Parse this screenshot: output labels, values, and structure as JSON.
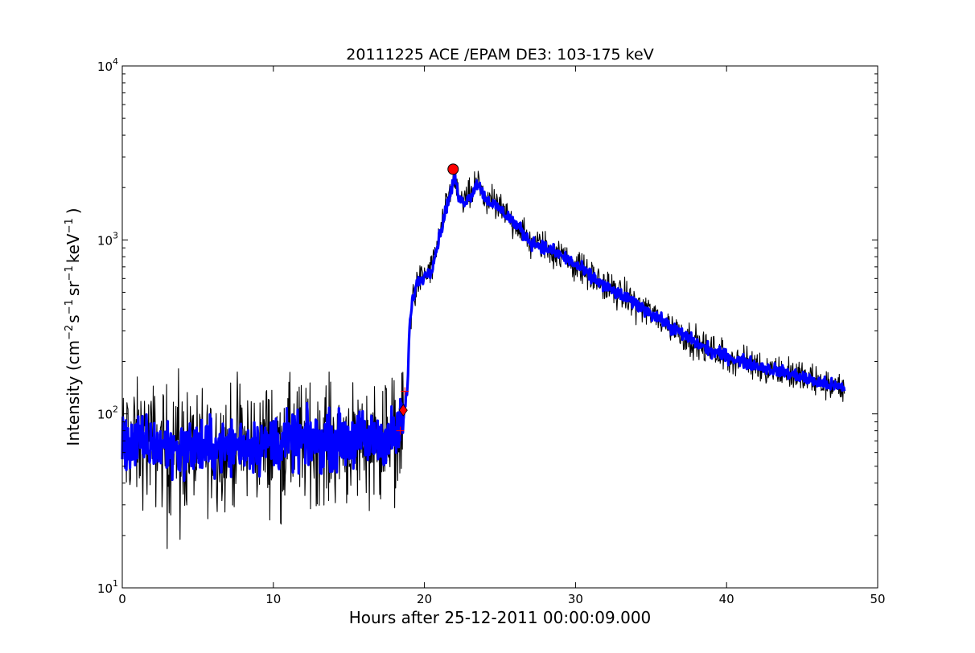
{
  "chart_data": {
    "type": "line",
    "title": "20111225 ACE /EPAM DE3: 103-175 keV",
    "xlabel": "Hours after 25-12-2011 00:00:09.000",
    "ylabel": {
      "prefix": "Intensity (cm",
      "sup1": "−2",
      "mid1": "s",
      "sup2": "−1",
      "mid2": "sr",
      "sup3": "−1",
      "mid3": "keV",
      "sup4": "−1",
      "suffix": ")"
    },
    "x_range": [
      0,
      50
    ],
    "y_range": [
      10,
      10000
    ],
    "y_scale": "log",
    "grid": false,
    "x_ticks": [
      0,
      10,
      20,
      30,
      40,
      50
    ],
    "y_ticks": [
      {
        "value": 10,
        "base": "10",
        "exp": "1"
      },
      {
        "value": 100,
        "base": "10",
        "exp": "2"
      },
      {
        "value": 1000,
        "base": "10",
        "exp": "3"
      },
      {
        "value": 10000,
        "base": "10",
        "exp": "4"
      }
    ],
    "series": [
      {
        "style": "raw",
        "color": "#000000",
        "x": [
          0,
          1,
          2,
          3,
          4,
          5,
          6,
          7,
          8,
          9,
          10,
          11,
          12,
          13,
          14,
          15,
          16,
          17,
          18,
          18.6,
          18.9,
          19.0,
          19.2,
          19.5,
          20,
          20.5,
          21,
          21.5,
          21.9,
          22.0,
          22.2,
          22.5,
          23,
          23.5,
          24,
          25,
          26,
          27,
          28,
          29,
          30,
          31,
          32,
          33,
          34,
          35,
          36,
          37,
          38,
          39,
          40,
          41,
          42,
          43,
          44,
          45,
          46,
          47,
          47.8
        ],
        "y": [
          67,
          68,
          66,
          65,
          63,
          64,
          64,
          65,
          66,
          67,
          68,
          69,
          69,
          70,
          70,
          71,
          71,
          72,
          74,
          92,
          150,
          300,
          450,
          560,
          620,
          690,
          1050,
          1600,
          2100,
          2500,
          1800,
          1650,
          1750,
          2150,
          1750,
          1500,
          1250,
          980,
          900,
          820,
          720,
          620,
          540,
          480,
          430,
          380,
          330,
          290,
          255,
          230,
          215,
          200,
          190,
          180,
          172,
          162,
          152,
          145,
          140
        ]
      },
      {
        "style": "smoothed",
        "color": "#0000ff",
        "x": [
          0,
          1,
          2,
          3,
          4,
          5,
          6,
          7,
          8,
          9,
          10,
          11,
          12,
          13,
          14,
          15,
          16,
          17,
          18,
          18.6,
          18.9,
          19.0,
          19.2,
          19.5,
          20,
          20.5,
          21,
          21.5,
          21.9,
          22.0,
          22.2,
          22.5,
          23,
          23.5,
          24,
          25,
          26,
          27,
          28,
          29,
          30,
          31,
          32,
          33,
          34,
          35,
          36,
          37,
          38,
          39,
          40,
          41,
          42,
          43,
          44,
          45,
          46,
          47,
          47.8
        ],
        "y": [
          67,
          68,
          66,
          65,
          63,
          64,
          64,
          65,
          66,
          67,
          68,
          69,
          69,
          70,
          70,
          71,
          71,
          72,
          74,
          92,
          150,
          300,
          450,
          560,
          620,
          690,
          1050,
          1600,
          2100,
          2500,
          1800,
          1650,
          1750,
          2150,
          1750,
          1500,
          1250,
          980,
          900,
          820,
          720,
          620,
          540,
          480,
          430,
          380,
          330,
          290,
          255,
          230,
          215,
          200,
          190,
          180,
          172,
          162,
          152,
          145,
          140
        ]
      }
    ],
    "markers": [
      {
        "kind": "peak-circle",
        "x": 21.9,
        "y": 2550,
        "color": "#ff0000"
      },
      {
        "kind": "onset-diamond",
        "x": 18.6,
        "y": 105,
        "color": "#ff0000"
      },
      {
        "kind": "plus",
        "x": 18.7,
        "y": 135,
        "color": "#ff0000"
      },
      {
        "kind": "plus",
        "x": 18.4,
        "y": 80,
        "color": "#ff0000"
      }
    ]
  }
}
